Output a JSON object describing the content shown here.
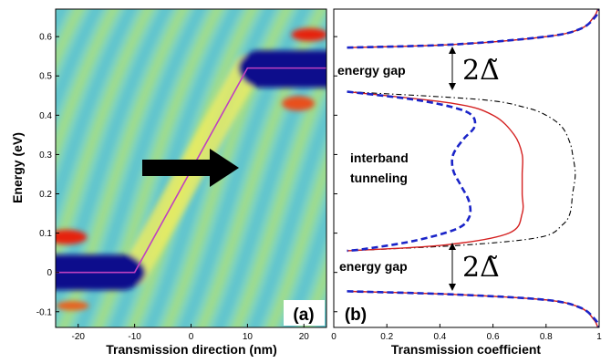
{
  "chart_data": [
    {
      "type": "heatmap",
      "panel_label": "(a)",
      "xlabel": "Transmission direction (nm)",
      "ylabel": "Energy (eV)",
      "xlim": [
        -24,
        24
      ],
      "ylim": [
        -0.14,
        0.67
      ],
      "xticks": [
        -20,
        -10,
        0,
        10,
        20
      ],
      "yticks": [
        -0.1,
        0,
        0.1,
        0.2,
        0.3,
        0.4,
        0.5,
        0.6
      ],
      "band_profile": {
        "x": [
          -24,
          -10,
          10,
          24
        ],
        "y": [
          0,
          0,
          0.52,
          0.52
        ],
        "color": "#c040c0"
      },
      "colors": {
        "background": "#74d3c2",
        "low": "#0a0a8c",
        "high": "#e62410"
      }
    },
    {
      "type": "line",
      "panel_label": "(b)",
      "xlabel": "Transmission coefficient",
      "xlim": [
        0,
        1
      ],
      "ylim": [
        -0.14,
        0.67
      ],
      "xticks": [
        0,
        0.2,
        0.4,
        0.6,
        0.8,
        1
      ],
      "xtick_labels": [
        "0",
        "0.2",
        "0.4",
        "0.6",
        "0.8",
        "1"
      ],
      "annotations": {
        "gap_top": "energy gap",
        "gap_bottom": "energy gap",
        "tunneling_line1": "interband",
        "tunneling_line2": "tunneling",
        "gap_symbol_top": "2Δ̃",
        "gap_symbol_bottom": "2Δ̃"
      },
      "series": [
        {
          "color": "#d42020",
          "style": "solid",
          "middle": {
            "y": [
              0.46,
              0.43,
              0.4,
              0.35,
              0.3,
              0.25,
              0.2,
              0.15,
              0.1,
              0.07,
              0.055
            ],
            "x": [
              0.05,
              0.45,
              0.6,
              0.68,
              0.71,
              0.71,
              0.71,
              0.71,
              0.66,
              0.42,
              0.05
            ]
          },
          "upper": {
            "y": [
              0.572,
              0.58,
              0.6,
              0.62,
              0.65,
              0.67
            ],
            "x": [
              0.05,
              0.45,
              0.8,
              0.93,
              0.98,
              0.995
            ]
          },
          "lower": {
            "y": [
              -0.048,
              -0.056,
              -0.07,
              -0.09,
              -0.12,
              -0.14
            ],
            "x": [
              0.05,
              0.45,
              0.8,
              0.93,
              0.98,
              0.995
            ]
          }
        },
        {
          "color": "#1a24c8",
          "style": "dashed",
          "middle": {
            "y": [
              0.46,
              0.44,
              0.42,
              0.4,
              0.37,
              0.34,
              0.3,
              0.26,
              0.22,
              0.18,
              0.14,
              0.11,
              0.08,
              0.06,
              0.055
            ],
            "x": [
              0.05,
              0.3,
              0.45,
              0.52,
              0.53,
              0.49,
              0.45,
              0.45,
              0.48,
              0.51,
              0.51,
              0.46,
              0.3,
              0.12,
              0.05
            ]
          },
          "upper": {
            "y": [
              0.572,
              0.58,
              0.6,
              0.62,
              0.65,
              0.67
            ],
            "x": [
              0.05,
              0.45,
              0.8,
              0.93,
              0.985,
              1.0
            ]
          },
          "lower": {
            "y": [
              -0.048,
              -0.056,
              -0.07,
              -0.09,
              -0.12,
              -0.14
            ],
            "x": [
              0.05,
              0.45,
              0.8,
              0.93,
              0.985,
              1.0
            ]
          }
        },
        {
          "color": "#000000",
          "style": "dashdot",
          "middle": {
            "y": [
              0.46,
              0.44,
              0.42,
              0.4,
              0.37,
              0.33,
              0.3,
              0.25,
              0.2,
              0.15,
              0.12,
              0.09,
              0.07,
              0.055
            ],
            "x": [
              0.05,
              0.55,
              0.72,
              0.8,
              0.86,
              0.89,
              0.9,
              0.91,
              0.9,
              0.89,
              0.86,
              0.78,
              0.5,
              0.05
            ]
          },
          "upper": {
            "y": [
              0.572,
              0.58,
              0.6,
              0.62,
              0.65,
              0.67
            ],
            "x": [
              0.05,
              0.45,
              0.8,
              0.93,
              0.98,
              0.995
            ]
          },
          "lower": {
            "y": [
              -0.048,
              -0.056,
              -0.07,
              -0.09,
              -0.12,
              -0.14
            ],
            "x": [
              0.05,
              0.45,
              0.8,
              0.93,
              0.98,
              0.995
            ]
          }
        }
      ]
    }
  ]
}
